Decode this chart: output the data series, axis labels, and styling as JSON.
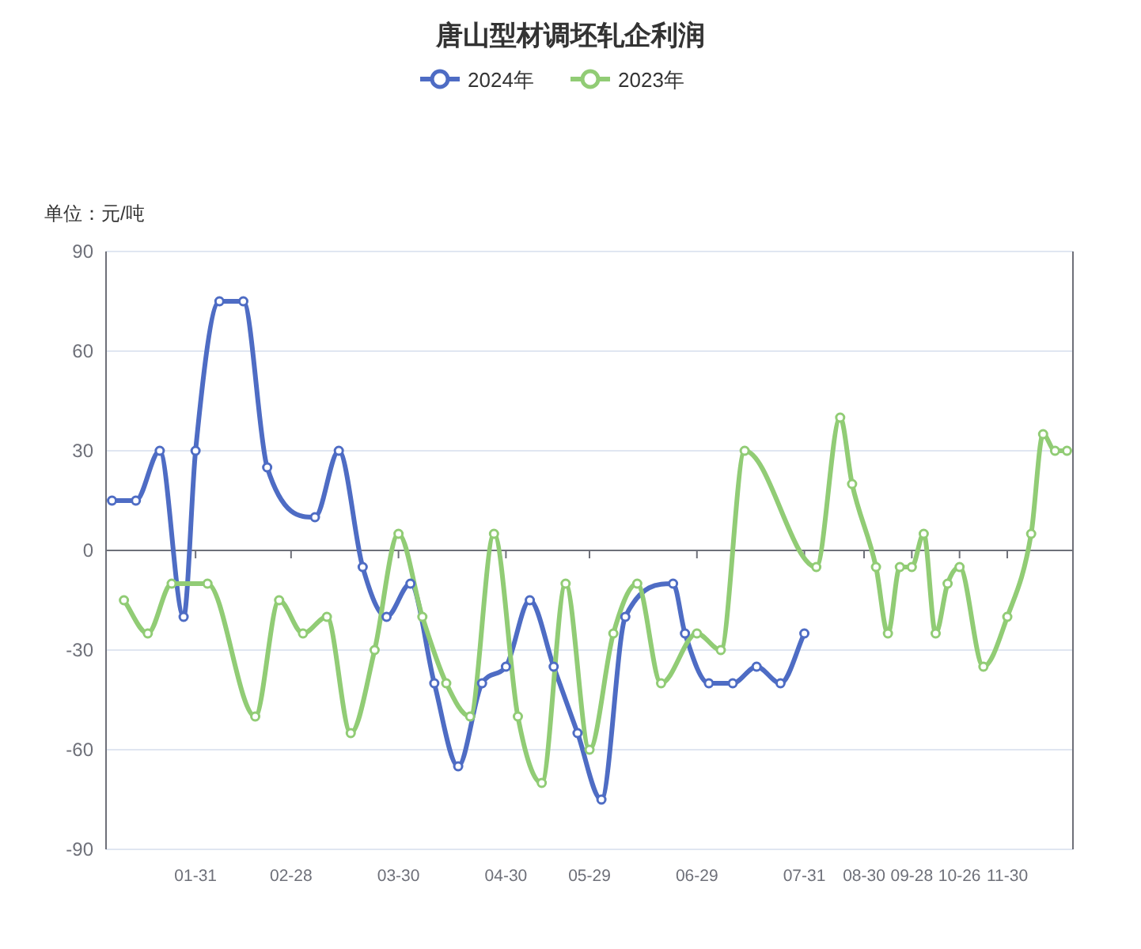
{
  "chart_data": {
    "type": "line",
    "title": "唐山型材调坯轧企利润",
    "ylabel": "单位：元/吨",
    "categories": [
      null,
      null,
      null,
      null,
      null,
      null,
      null,
      "01-31",
      null,
      null,
      null,
      null,
      null,
      null,
      null,
      "02-28",
      null,
      null,
      null,
      null,
      null,
      null,
      null,
      null,
      "03-30",
      null,
      null,
      null,
      null,
      null,
      null,
      null,
      null,
      "04-30",
      null,
      null,
      null,
      null,
      null,
      null,
      "05-29",
      null,
      null,
      null,
      null,
      null,
      null,
      null,
      null,
      "06-29",
      null,
      null,
      null,
      null,
      null,
      null,
      null,
      null,
      "07-31",
      null,
      null,
      null,
      null,
      "08-30",
      null,
      null,
      null,
      "09-28",
      null,
      null,
      null,
      "10-26",
      null,
      null,
      null,
      "11-30",
      null,
      null,
      null,
      null,
      null
    ],
    "series": [
      {
        "name": "2024年",
        "color": "#4e6cc4",
        "values": [
          15,
          null,
          15,
          null,
          30,
          null,
          -20,
          30,
          null,
          75,
          null,
          75,
          null,
          25,
          null,
          null,
          null,
          10,
          null,
          30,
          null,
          -5,
          null,
          -20,
          null,
          -10,
          null,
          -40,
          null,
          -65,
          null,
          -40,
          null,
          -35,
          null,
          -15,
          null,
          -35,
          null,
          -55,
          null,
          -75,
          null,
          -20,
          null,
          null,
          null,
          -10,
          -25,
          null,
          -40,
          null,
          -40,
          null,
          -35,
          null,
          -40,
          null,
          -25,
          null,
          null,
          null,
          null,
          null,
          null,
          null,
          null,
          null,
          null,
          null,
          null,
          null,
          null,
          null,
          null,
          null,
          null,
          null,
          null,
          null,
          null
        ]
      },
      {
        "name": "2023年",
        "color": "#91cc75",
        "values": [
          null,
          -15,
          null,
          -25,
          null,
          -10,
          null,
          null,
          -10,
          null,
          null,
          null,
          -50,
          null,
          -15,
          null,
          -25,
          null,
          -20,
          null,
          -55,
          null,
          -30,
          null,
          5,
          null,
          -20,
          null,
          -40,
          null,
          -50,
          null,
          5,
          null,
          -50,
          null,
          -70,
          null,
          -10,
          null,
          -60,
          null,
          -25,
          null,
          -10,
          null,
          -40,
          null,
          null,
          -25,
          null,
          -30,
          null,
          30,
          null,
          null,
          null,
          null,
          null,
          -5,
          null,
          40,
          20,
          null,
          -5,
          -25,
          -5,
          -5,
          5,
          -25,
          -10,
          -5,
          null,
          -35,
          null,
          -20,
          null,
          5,
          35,
          30,
          30
        ]
      }
    ],
    "ylim": [
      -90,
      90
    ],
    "yticks": [
      -90,
      -60,
      -30,
      0,
      30,
      60,
      90
    ],
    "grid": "y",
    "legend": "top",
    "marker": "circle"
  }
}
